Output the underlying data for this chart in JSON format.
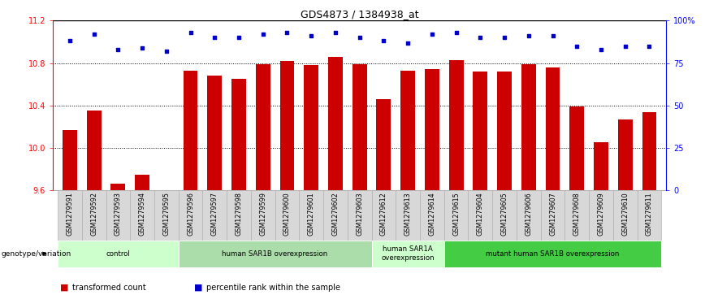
{
  "title": "GDS4873 / 1384938_at",
  "samples": [
    "GSM1279591",
    "GSM1279592",
    "GSM1279593",
    "GSM1279594",
    "GSM1279595",
    "GSM1279596",
    "GSM1279597",
    "GSM1279598",
    "GSM1279599",
    "GSM1279600",
    "GSM1279601",
    "GSM1279602",
    "GSM1279603",
    "GSM1279612",
    "GSM1279613",
    "GSM1279614",
    "GSM1279615",
    "GSM1279604",
    "GSM1279605",
    "GSM1279606",
    "GSM1279607",
    "GSM1279608",
    "GSM1279609",
    "GSM1279610",
    "GSM1279611"
  ],
  "bar_values": [
    10.17,
    10.35,
    9.66,
    9.75,
    9.6,
    10.73,
    10.68,
    10.65,
    10.79,
    10.82,
    10.78,
    10.86,
    10.79,
    10.46,
    10.73,
    10.74,
    10.83,
    10.72,
    10.72,
    10.79,
    10.76,
    10.39,
    10.05,
    10.27,
    10.34
  ],
  "percentile_values": [
    88,
    92,
    83,
    84,
    82,
    93,
    90,
    90,
    92,
    93,
    91,
    93,
    90,
    88,
    87,
    92,
    93,
    90,
    90,
    91,
    91,
    85,
    83,
    85,
    85
  ],
  "bar_color": "#cc0000",
  "dot_color": "#0000cc",
  "ylim_left": [
    9.6,
    11.2
  ],
  "ylim_right": [
    0,
    100
  ],
  "yticks_left": [
    9.6,
    10.0,
    10.4,
    10.8,
    11.2
  ],
  "yticks_right": [
    0,
    25,
    50,
    75,
    100
  ],
  "ytick_labels_right": [
    "0",
    "25",
    "50",
    "75",
    "100%"
  ],
  "grid_values": [
    10.0,
    10.4,
    10.8
  ],
  "groups": [
    {
      "label": "control",
      "start": 0,
      "end": 4,
      "color": "#ccffcc"
    },
    {
      "label": "human SAR1B overexpression",
      "start": 5,
      "end": 12,
      "color": "#aaddaa"
    },
    {
      "label": "human SAR1A\noverexpression",
      "start": 13,
      "end": 15,
      "color": "#ccffcc"
    },
    {
      "label": "mutant human SAR1B overexpression",
      "start": 16,
      "end": 24,
      "color": "#44cc44"
    }
  ],
  "genotype_label": "genotype/variation",
  "legend_items": [
    {
      "label": "transformed count",
      "color": "#cc0000"
    },
    {
      "label": "percentile rank within the sample",
      "color": "#0000cc"
    }
  ],
  "bg_color": "#ffffff",
  "xtick_bg": "#d8d8d8",
  "xtick_border": "#aaaaaa"
}
